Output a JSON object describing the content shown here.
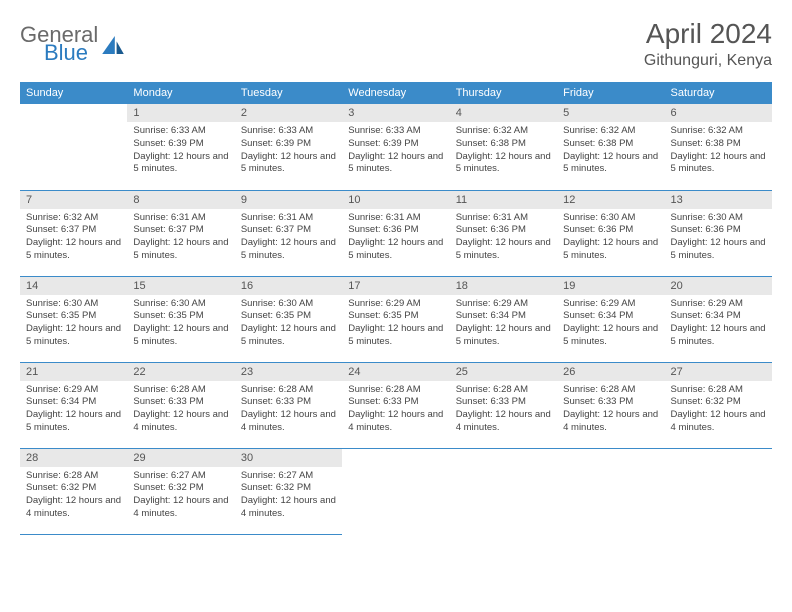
{
  "logo": {
    "text1": "General",
    "text2": "Blue"
  },
  "title": "April 2024",
  "location": "Githunguri, Kenya",
  "colors": {
    "header_bg": "#3b8bc9",
    "header_text": "#ffffff",
    "daynum_bg": "#e8e8e8",
    "border": "#3b8bc9",
    "logo_gray": "#6a6a6a",
    "logo_blue": "#2b7bbf"
  },
  "days_of_week": [
    "Sunday",
    "Monday",
    "Tuesday",
    "Wednesday",
    "Thursday",
    "Friday",
    "Saturday"
  ],
  "start_offset": 1,
  "days": [
    {
      "n": 1,
      "sunrise": "6:33 AM",
      "sunset": "6:39 PM",
      "daylight": "12 hours and 5 minutes."
    },
    {
      "n": 2,
      "sunrise": "6:33 AM",
      "sunset": "6:39 PM",
      "daylight": "12 hours and 5 minutes."
    },
    {
      "n": 3,
      "sunrise": "6:33 AM",
      "sunset": "6:39 PM",
      "daylight": "12 hours and 5 minutes."
    },
    {
      "n": 4,
      "sunrise": "6:32 AM",
      "sunset": "6:38 PM",
      "daylight": "12 hours and 5 minutes."
    },
    {
      "n": 5,
      "sunrise": "6:32 AM",
      "sunset": "6:38 PM",
      "daylight": "12 hours and 5 minutes."
    },
    {
      "n": 6,
      "sunrise": "6:32 AM",
      "sunset": "6:38 PM",
      "daylight": "12 hours and 5 minutes."
    },
    {
      "n": 7,
      "sunrise": "6:32 AM",
      "sunset": "6:37 PM",
      "daylight": "12 hours and 5 minutes."
    },
    {
      "n": 8,
      "sunrise": "6:31 AM",
      "sunset": "6:37 PM",
      "daylight": "12 hours and 5 minutes."
    },
    {
      "n": 9,
      "sunrise": "6:31 AM",
      "sunset": "6:37 PM",
      "daylight": "12 hours and 5 minutes."
    },
    {
      "n": 10,
      "sunrise": "6:31 AM",
      "sunset": "6:36 PM",
      "daylight": "12 hours and 5 minutes."
    },
    {
      "n": 11,
      "sunrise": "6:31 AM",
      "sunset": "6:36 PM",
      "daylight": "12 hours and 5 minutes."
    },
    {
      "n": 12,
      "sunrise": "6:30 AM",
      "sunset": "6:36 PM",
      "daylight": "12 hours and 5 minutes."
    },
    {
      "n": 13,
      "sunrise": "6:30 AM",
      "sunset": "6:36 PM",
      "daylight": "12 hours and 5 minutes."
    },
    {
      "n": 14,
      "sunrise": "6:30 AM",
      "sunset": "6:35 PM",
      "daylight": "12 hours and 5 minutes."
    },
    {
      "n": 15,
      "sunrise": "6:30 AM",
      "sunset": "6:35 PM",
      "daylight": "12 hours and 5 minutes."
    },
    {
      "n": 16,
      "sunrise": "6:30 AM",
      "sunset": "6:35 PM",
      "daylight": "12 hours and 5 minutes."
    },
    {
      "n": 17,
      "sunrise": "6:29 AM",
      "sunset": "6:35 PM",
      "daylight": "12 hours and 5 minutes."
    },
    {
      "n": 18,
      "sunrise": "6:29 AM",
      "sunset": "6:34 PM",
      "daylight": "12 hours and 5 minutes."
    },
    {
      "n": 19,
      "sunrise": "6:29 AM",
      "sunset": "6:34 PM",
      "daylight": "12 hours and 5 minutes."
    },
    {
      "n": 20,
      "sunrise": "6:29 AM",
      "sunset": "6:34 PM",
      "daylight": "12 hours and 5 minutes."
    },
    {
      "n": 21,
      "sunrise": "6:29 AM",
      "sunset": "6:34 PM",
      "daylight": "12 hours and 5 minutes."
    },
    {
      "n": 22,
      "sunrise": "6:28 AM",
      "sunset": "6:33 PM",
      "daylight": "12 hours and 4 minutes."
    },
    {
      "n": 23,
      "sunrise": "6:28 AM",
      "sunset": "6:33 PM",
      "daylight": "12 hours and 4 minutes."
    },
    {
      "n": 24,
      "sunrise": "6:28 AM",
      "sunset": "6:33 PM",
      "daylight": "12 hours and 4 minutes."
    },
    {
      "n": 25,
      "sunrise": "6:28 AM",
      "sunset": "6:33 PM",
      "daylight": "12 hours and 4 minutes."
    },
    {
      "n": 26,
      "sunrise": "6:28 AM",
      "sunset": "6:33 PM",
      "daylight": "12 hours and 4 minutes."
    },
    {
      "n": 27,
      "sunrise": "6:28 AM",
      "sunset": "6:32 PM",
      "daylight": "12 hours and 4 minutes."
    },
    {
      "n": 28,
      "sunrise": "6:28 AM",
      "sunset": "6:32 PM",
      "daylight": "12 hours and 4 minutes."
    },
    {
      "n": 29,
      "sunrise": "6:27 AM",
      "sunset": "6:32 PM",
      "daylight": "12 hours and 4 minutes."
    },
    {
      "n": 30,
      "sunrise": "6:27 AM",
      "sunset": "6:32 PM",
      "daylight": "12 hours and 4 minutes."
    }
  ],
  "labels": {
    "sunrise": "Sunrise:",
    "sunset": "Sunset:",
    "daylight": "Daylight:"
  }
}
